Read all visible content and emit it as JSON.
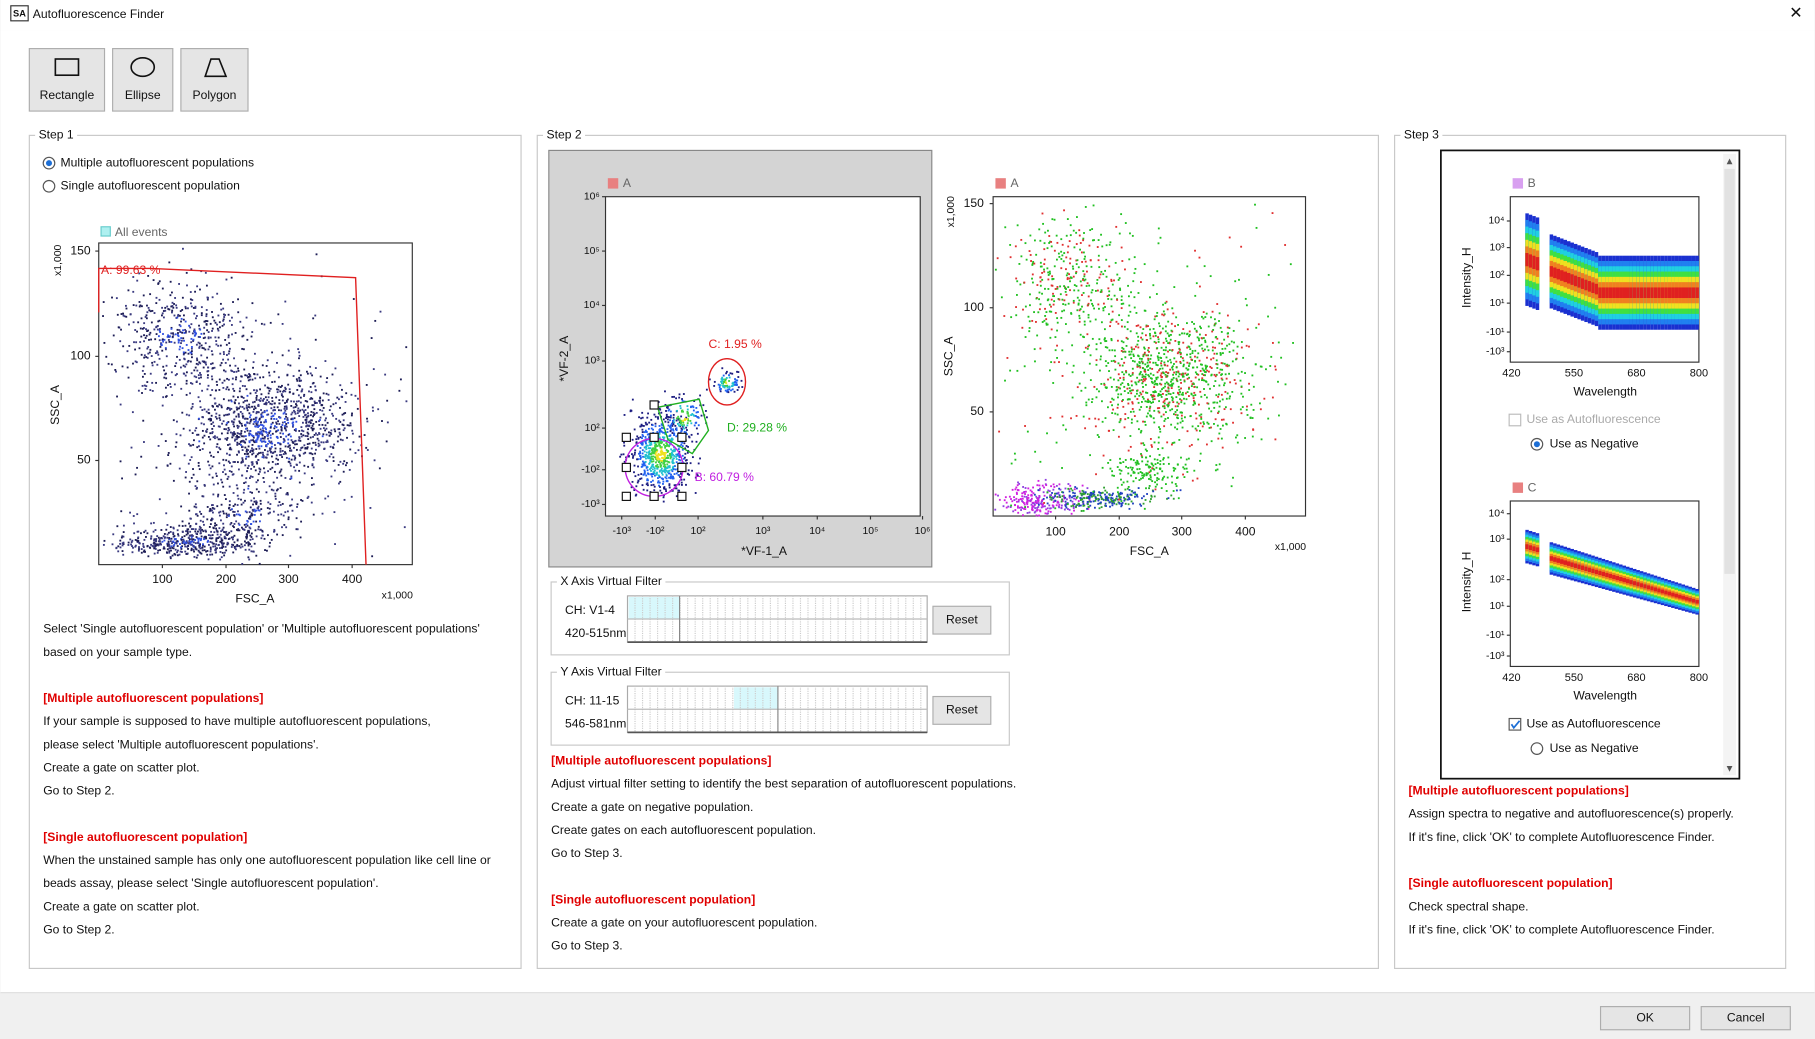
{
  "window": {
    "icon": "SA",
    "title": "Autofluorescence Finder",
    "close": "✕"
  },
  "toolbar": [
    "Rectangle",
    "Ellipse",
    "Polygon"
  ],
  "step1": {
    "title": "Step 1",
    "options": [
      "Multiple autofluorescent populations",
      "Single autofluorescent population"
    ],
    "plot": {
      "legend": "All events",
      "y_label": "SSC_A",
      "x_label": "FSC_A",
      "y_unit": "x1,000",
      "x_unit": "x1,000",
      "gate": "A: 99.63 %",
      "xticks": [
        "100",
        "200",
        "300",
        "400"
      ],
      "yticks": [
        "150",
        "100",
        "50"
      ]
    },
    "instructions": [
      {
        "text": "Select 'Single autofluorescent population' or 'Multiple autofluorescent populations'",
        "heading": false
      },
      {
        "text": "based on your sample type.",
        "heading": false
      },
      {
        "text": "[Multiple autofluorescent populations]",
        "heading": true
      },
      {
        "text": "If your sample is supposed to have multiple autofluorescent populations,",
        "heading": false
      },
      {
        "text": "please select 'Multiple autofluorescent populations'.",
        "heading": false
      },
      {
        "text": "Create a gate on scatter plot.",
        "heading": false
      },
      {
        "text": "Go to Step 2.",
        "heading": false
      },
      {
        "text": "[Single autofluorescent population]",
        "heading": true
      },
      {
        "text": "When the unstained sample has only one autofluorescent population like cell line or",
        "heading": false
      },
      {
        "text": "beads assay, please select 'Single autofluorescent population'.",
        "heading": false
      },
      {
        "text": "Create a gate on scatter plot.",
        "heading": false
      },
      {
        "text": "Go to Step 2.",
        "heading": false
      }
    ]
  },
  "step2": {
    "title": "Step 2",
    "plot1": {
      "legend": "A",
      "y_label": "*VF-2_A",
      "x_label": "*VF-1_A",
      "xticks": [
        "-10³",
        "-10²",
        "10²",
        "10³",
        "10⁴",
        "10⁵",
        "10⁶"
      ],
      "yticks": [
        "10⁶",
        "10⁵",
        "10⁴",
        "10³",
        "10²",
        "-10²",
        "-10³"
      ],
      "gates": [
        "C: 1.95 %",
        "D: 29.28 %",
        "B: 60.79 %"
      ]
    },
    "plot2": {
      "legend": "A",
      "y_label": "SSC_A",
      "x_label": "FSC_A",
      "y_unit": "x1,000",
      "x_unit": "x1,000",
      "xticks": [
        "100",
        "200",
        "300",
        "400"
      ],
      "yticks": [
        "150",
        "100",
        "50"
      ]
    },
    "x_filter": {
      "title": "X Axis Virtual Filter",
      "channel": "CH: V1-4",
      "range": "420-515nm",
      "button": "Reset"
    },
    "y_filter": {
      "title": "Y Axis Virtual Filter",
      "channel": "CH: 11-15",
      "range": "546-581nm",
      "button": "Reset"
    },
    "instructions": [
      {
        "text": "[Multiple autofluorescent populations]",
        "heading": true
      },
      {
        "text": "Adjust virtual filter setting to identify the best separation of autofluorescent populations.",
        "heading": false
      },
      {
        "text": "Create a gate on negative population.",
        "heading": false
      },
      {
        "text": "Create gates on each autofluorescent population.",
        "heading": false
      },
      {
        "text": "Go to Step 3.",
        "heading": false
      },
      {
        "text": "[Single autofluorescent population]",
        "heading": true
      },
      {
        "text": "Create a gate on your autofluorescent population.",
        "heading": false
      },
      {
        "text": "Go to Step 3.",
        "heading": false
      }
    ]
  },
  "step3": {
    "title": "Step 3",
    "spectra": [
      {
        "legend": "B",
        "y_label": "Intensity_H",
        "x_label": "Wavelength",
        "xticks": [
          "420",
          "550",
          "680",
          "800"
        ],
        "yticks": [
          "10⁴",
          "10³",
          "10²",
          "10¹",
          "-10¹",
          "-10³"
        ],
        "autofluorescence": "Use as Autofluorescence",
        "negative": "Use as Negative",
        "auto_checked": false,
        "auto_disabled": true,
        "negative_selected": true
      },
      {
        "legend": "C",
        "y_label": "Intensity_H",
        "x_label": "Wavelength",
        "xticks": [
          "420",
          "550",
          "680",
          "800"
        ],
        "yticks": [
          "10⁴",
          "10³",
          "10²",
          "10¹",
          "-10¹",
          "-10³"
        ],
        "autofluorescence": "Use as Autofluorescence",
        "negative": "Use as Negative",
        "auto_checked": true,
        "auto_disabled": false,
        "negative_selected": false
      }
    ],
    "instructions": [
      {
        "text": "[Multiple autofluorescent populations]",
        "heading": true
      },
      {
        "text": "Assign spectra to negative and autofluorescence(s) properly.",
        "heading": false
      },
      {
        "text": "If it's fine, click 'OK' to complete Autofluorescence Finder.",
        "heading": false
      },
      {
        "text": "[Single autofluorescent population]",
        "heading": true
      },
      {
        "text": "Check spectral shape.",
        "heading": false
      },
      {
        "text": "If it's fine, click 'OK' to complete Autofluorescence Finder.",
        "heading": false
      }
    ]
  },
  "footer": {
    "ok": "OK",
    "cancel": "Cancel"
  }
}
